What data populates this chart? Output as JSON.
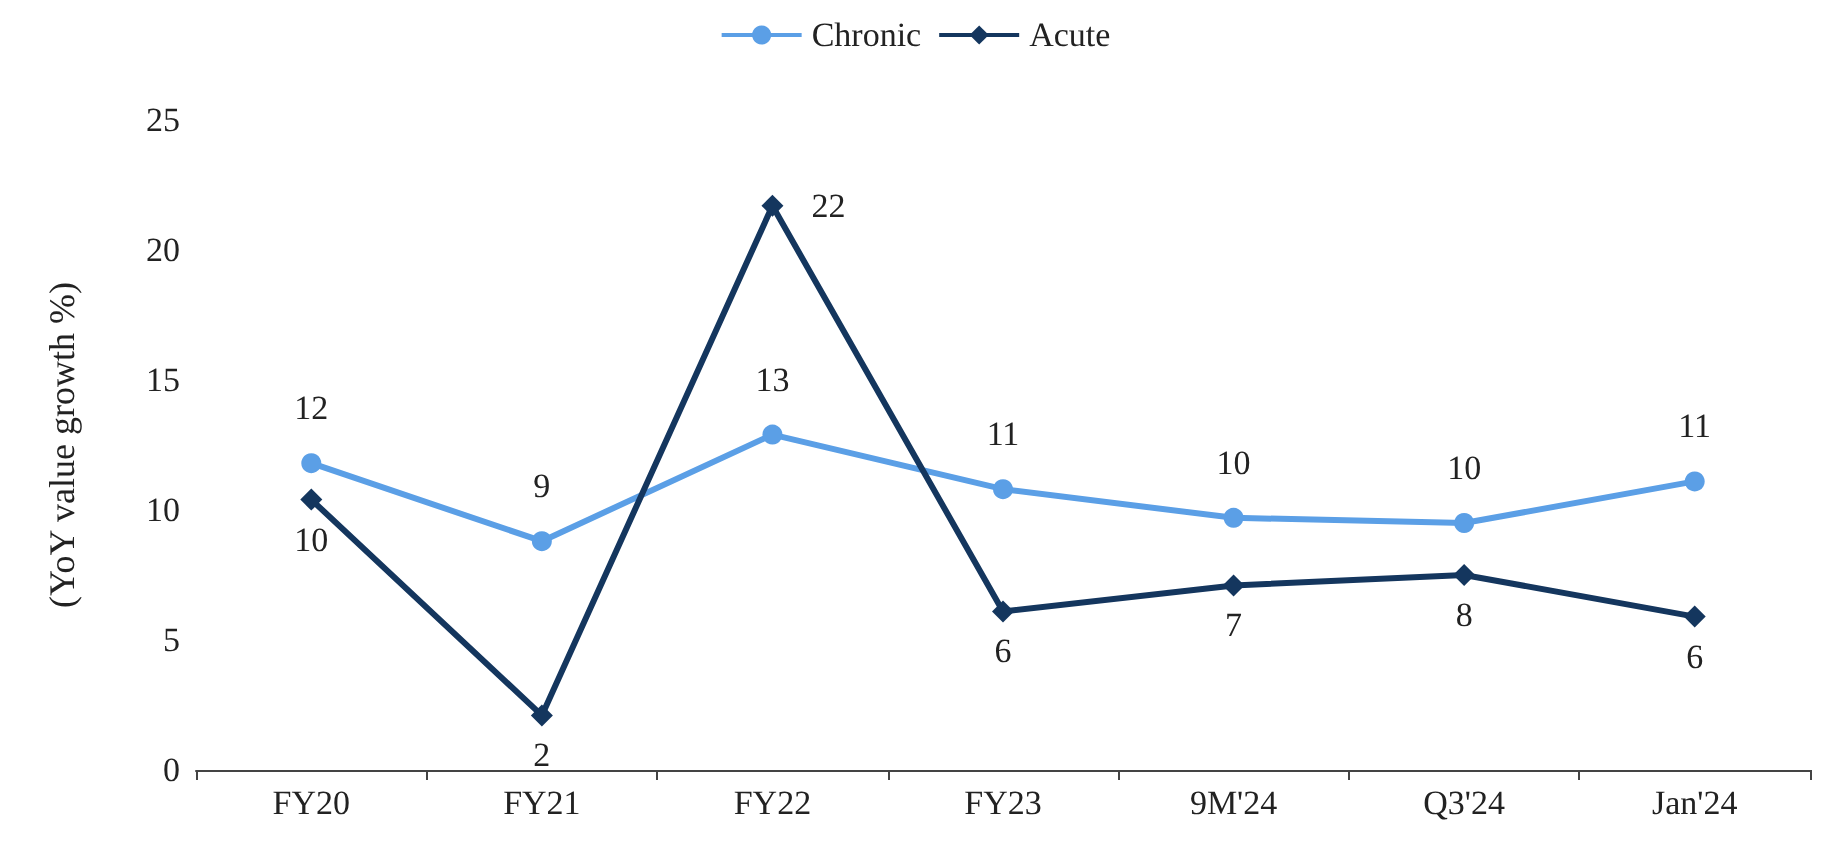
{
  "chart_data": {
    "type": "line",
    "ylabel": "(YoY value growth %)",
    "categories": [
      "FY20",
      "FY21",
      "FY22",
      "FY23",
      "9M'24",
      "Q3'24",
      "Jan'24"
    ],
    "series": [
      {
        "name": "Chronic",
        "color": "#5b9fe6",
        "marker": "circle",
        "values": [
          11.8,
          8.8,
          12.9,
          10.8,
          9.7,
          9.5,
          11.1
        ],
        "value_labels": [
          "12",
          "9",
          "13",
          "11",
          "10",
          "10",
          "11"
        ]
      },
      {
        "name": "Acute",
        "color": "#14365e",
        "marker": "diamond",
        "values": [
          10.4,
          2.1,
          21.7,
          6.1,
          7.1,
          7.5,
          5.9
        ],
        "value_labels": [
          "10",
          "2",
          "22",
          "6",
          "7",
          "8",
          "6"
        ]
      }
    ],
    "ylim": [
      0,
      25
    ],
    "yticks": [
      0,
      5,
      10,
      15,
      20,
      25
    ],
    "grid": false,
    "legend": "top",
    "line_style": "solid"
  }
}
